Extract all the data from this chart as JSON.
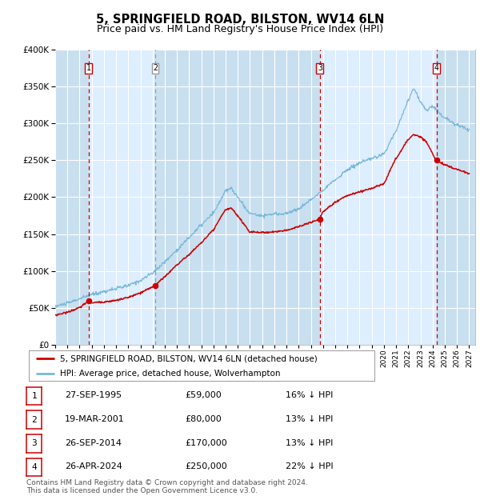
{
  "title": "5, SPRINGFIELD ROAD, BILSTON, WV14 6LN",
  "subtitle": "Price paid vs. HM Land Registry's House Price Index (HPI)",
  "ylim": [
    0,
    400000
  ],
  "yticks": [
    0,
    50000,
    100000,
    150000,
    200000,
    250000,
    300000,
    350000,
    400000
  ],
  "xlim_start": 1993.0,
  "xlim_end": 2027.5,
  "plot_bg_color": "#ddeeff",
  "hpi_line_color": "#7ab8d9",
  "price_line_color": "#cc0000",
  "marker_color": "#cc0000",
  "vline_color_red": "#cc0000",
  "vline_color_grey": "#999999",
  "grid_color": "#ffffff",
  "transactions": [
    {
      "label": "1",
      "date_num": 1995.74,
      "price": 59000,
      "vline_style": "red"
    },
    {
      "label": "2",
      "date_num": 2001.21,
      "price": 80000,
      "vline_style": "grey"
    },
    {
      "label": "3",
      "date_num": 2014.74,
      "price": 170000,
      "vline_style": "red"
    },
    {
      "label": "4",
      "date_num": 2024.32,
      "price": 250000,
      "vline_style": "red"
    }
  ],
  "legend_entries": [
    {
      "label": "5, SPRINGFIELD ROAD, BILSTON, WV14 6LN (detached house)",
      "color": "#cc0000"
    },
    {
      "label": "HPI: Average price, detached house, Wolverhampton",
      "color": "#7ab8d9"
    }
  ],
  "table_rows": [
    {
      "num": "1",
      "date": "27-SEP-1995",
      "price": "£59,000",
      "hpi": "16% ↓ HPI"
    },
    {
      "num": "2",
      "date": "19-MAR-2001",
      "price": "£80,000",
      "hpi": "13% ↓ HPI"
    },
    {
      "num": "3",
      "date": "26-SEP-2014",
      "price": "£170,000",
      "hpi": "13% ↓ HPI"
    },
    {
      "num": "4",
      "date": "26-APR-2024",
      "price": "£250,000",
      "hpi": "22% ↓ HPI"
    }
  ],
  "footer": "Contains HM Land Registry data © Crown copyright and database right 2024.\nThis data is licensed under the Open Government Licence v3.0.",
  "hpi_years": [
    1993,
    1994,
    1995,
    1996,
    1997,
    1998,
    1999,
    2000,
    2001,
    2002,
    2003,
    2004,
    2005,
    2006,
    2007,
    2007.5,
    2008,
    2009,
    2010,
    2011,
    2012,
    2013,
    2014,
    2015,
    2016,
    2017,
    2018,
    2019,
    2020,
    2021,
    2022,
    2022.5,
    2023,
    2023.5,
    2024,
    2025,
    2026,
    2027
  ],
  "hpi_vals": [
    52000,
    56000,
    62000,
    68000,
    72000,
    76000,
    80000,
    87000,
    97000,
    112000,
    128000,
    145000,
    162000,
    178000,
    208000,
    212000,
    200000,
    178000,
    175000,
    177000,
    178000,
    184000,
    196000,
    210000,
    223000,
    237000,
    246000,
    252000,
    258000,
    290000,
    330000,
    348000,
    330000,
    318000,
    323000,
    308000,
    298000,
    292000
  ],
  "price_years": [
    1993,
    1994,
    1995,
    1995.74,
    1996,
    1997,
    1998,
    1999,
    2000,
    2001.21,
    2002,
    2003,
    2004,
    2005,
    2006,
    2007,
    2007.5,
    2008,
    2009,
    2010,
    2011,
    2012,
    2013,
    2014.74,
    2015,
    2016,
    2017,
    2018,
    2019,
    2020,
    2021,
    2022,
    2022.5,
    2023,
    2023.5,
    2024.32,
    2025,
    2026,
    2027
  ],
  "price_vals": [
    40000,
    44000,
    50000,
    59000,
    57000,
    58000,
    60000,
    64000,
    70000,
    80000,
    92000,
    108000,
    122000,
    138000,
    155000,
    183000,
    185000,
    175000,
    153000,
    152000,
    153000,
    155000,
    160000,
    170000,
    180000,
    193000,
    202000,
    207000,
    212000,
    218000,
    252000,
    278000,
    285000,
    282000,
    275000,
    250000,
    244000,
    238000,
    232000
  ]
}
